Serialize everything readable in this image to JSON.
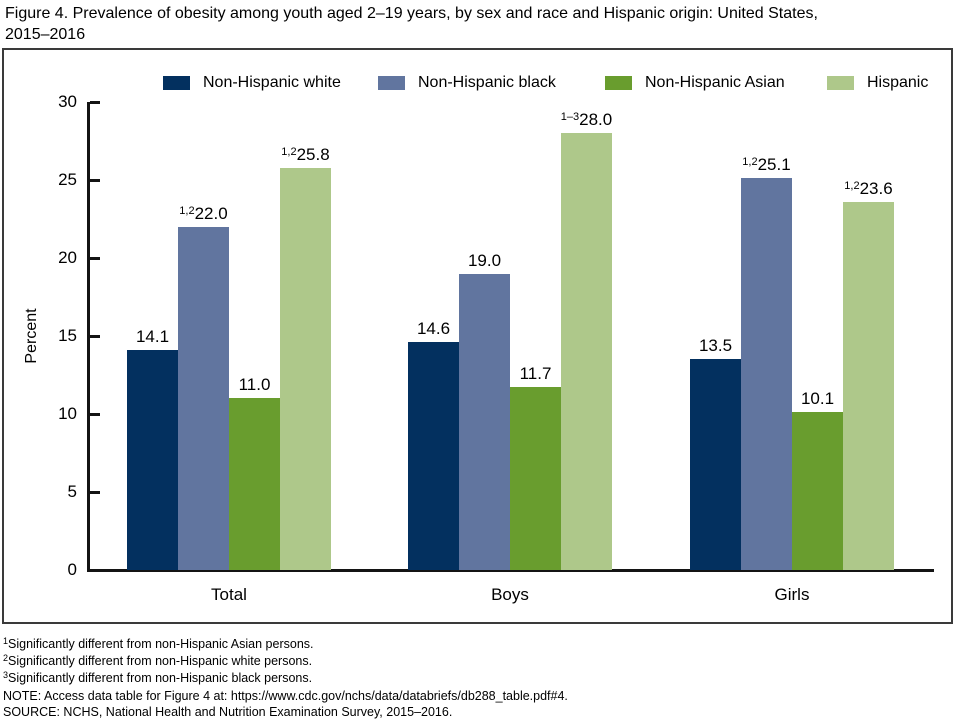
{
  "title": {
    "line1": "Figure 4. Prevalence of obesity among youth aged 2–19 years, by sex and race and Hispanic origin: United States,",
    "line2": "2015–2016"
  },
  "chart_data": {
    "type": "bar",
    "title": "Figure 4. Prevalence of obesity among youth aged 2–19 years, by sex and race and Hispanic origin: United States, 2015–2016",
    "xlabel": "",
    "ylabel": "Percent",
    "ylim": [
      0,
      30
    ],
    "yticks": [
      0,
      5,
      10,
      15,
      20,
      25,
      30
    ],
    "grid": false,
    "legend_position": "top",
    "categories": [
      "Total",
      "Boys",
      "Girls"
    ],
    "series": [
      {
        "name": "Non-Hispanic white",
        "color": "#03305f",
        "values": [
          14.1,
          14.6,
          13.5
        ],
        "label_sups": [
          "",
          "",
          ""
        ]
      },
      {
        "name": "Non-Hispanic black",
        "color": "#61759f",
        "values": [
          22.0,
          19.0,
          25.1
        ],
        "label_sups": [
          "1,2",
          "",
          "1,2"
        ]
      },
      {
        "name": "Non-Hispanic Asian",
        "color": "#699d2e",
        "values": [
          11.0,
          11.7,
          10.1
        ],
        "label_sups": [
          "",
          "",
          ""
        ]
      },
      {
        "name": "Hispanic",
        "color": "#aec88a",
        "values": [
          25.8,
          28.0,
          23.6
        ],
        "label_sups": [
          "1,2",
          "1–3",
          "1,2"
        ]
      }
    ]
  },
  "footnotes": {
    "items": [
      {
        "sup": "1",
        "text": "Significantly different from non-Hispanic Asian persons."
      },
      {
        "sup": "2",
        "text": "Significantly different from non-Hispanic white persons."
      },
      {
        "sup": "3",
        "text": "Significantly different from non-Hispanic black persons."
      },
      {
        "sup": "",
        "text": "NOTE: Access data table for Figure 4 at: https://www.cdc.gov/nchs/data/databriefs/db288_table.pdf#4."
      },
      {
        "sup": "",
        "text": "SOURCE: NCHS, National Health and Nutrition Examination Survey, 2015–2016."
      }
    ]
  }
}
